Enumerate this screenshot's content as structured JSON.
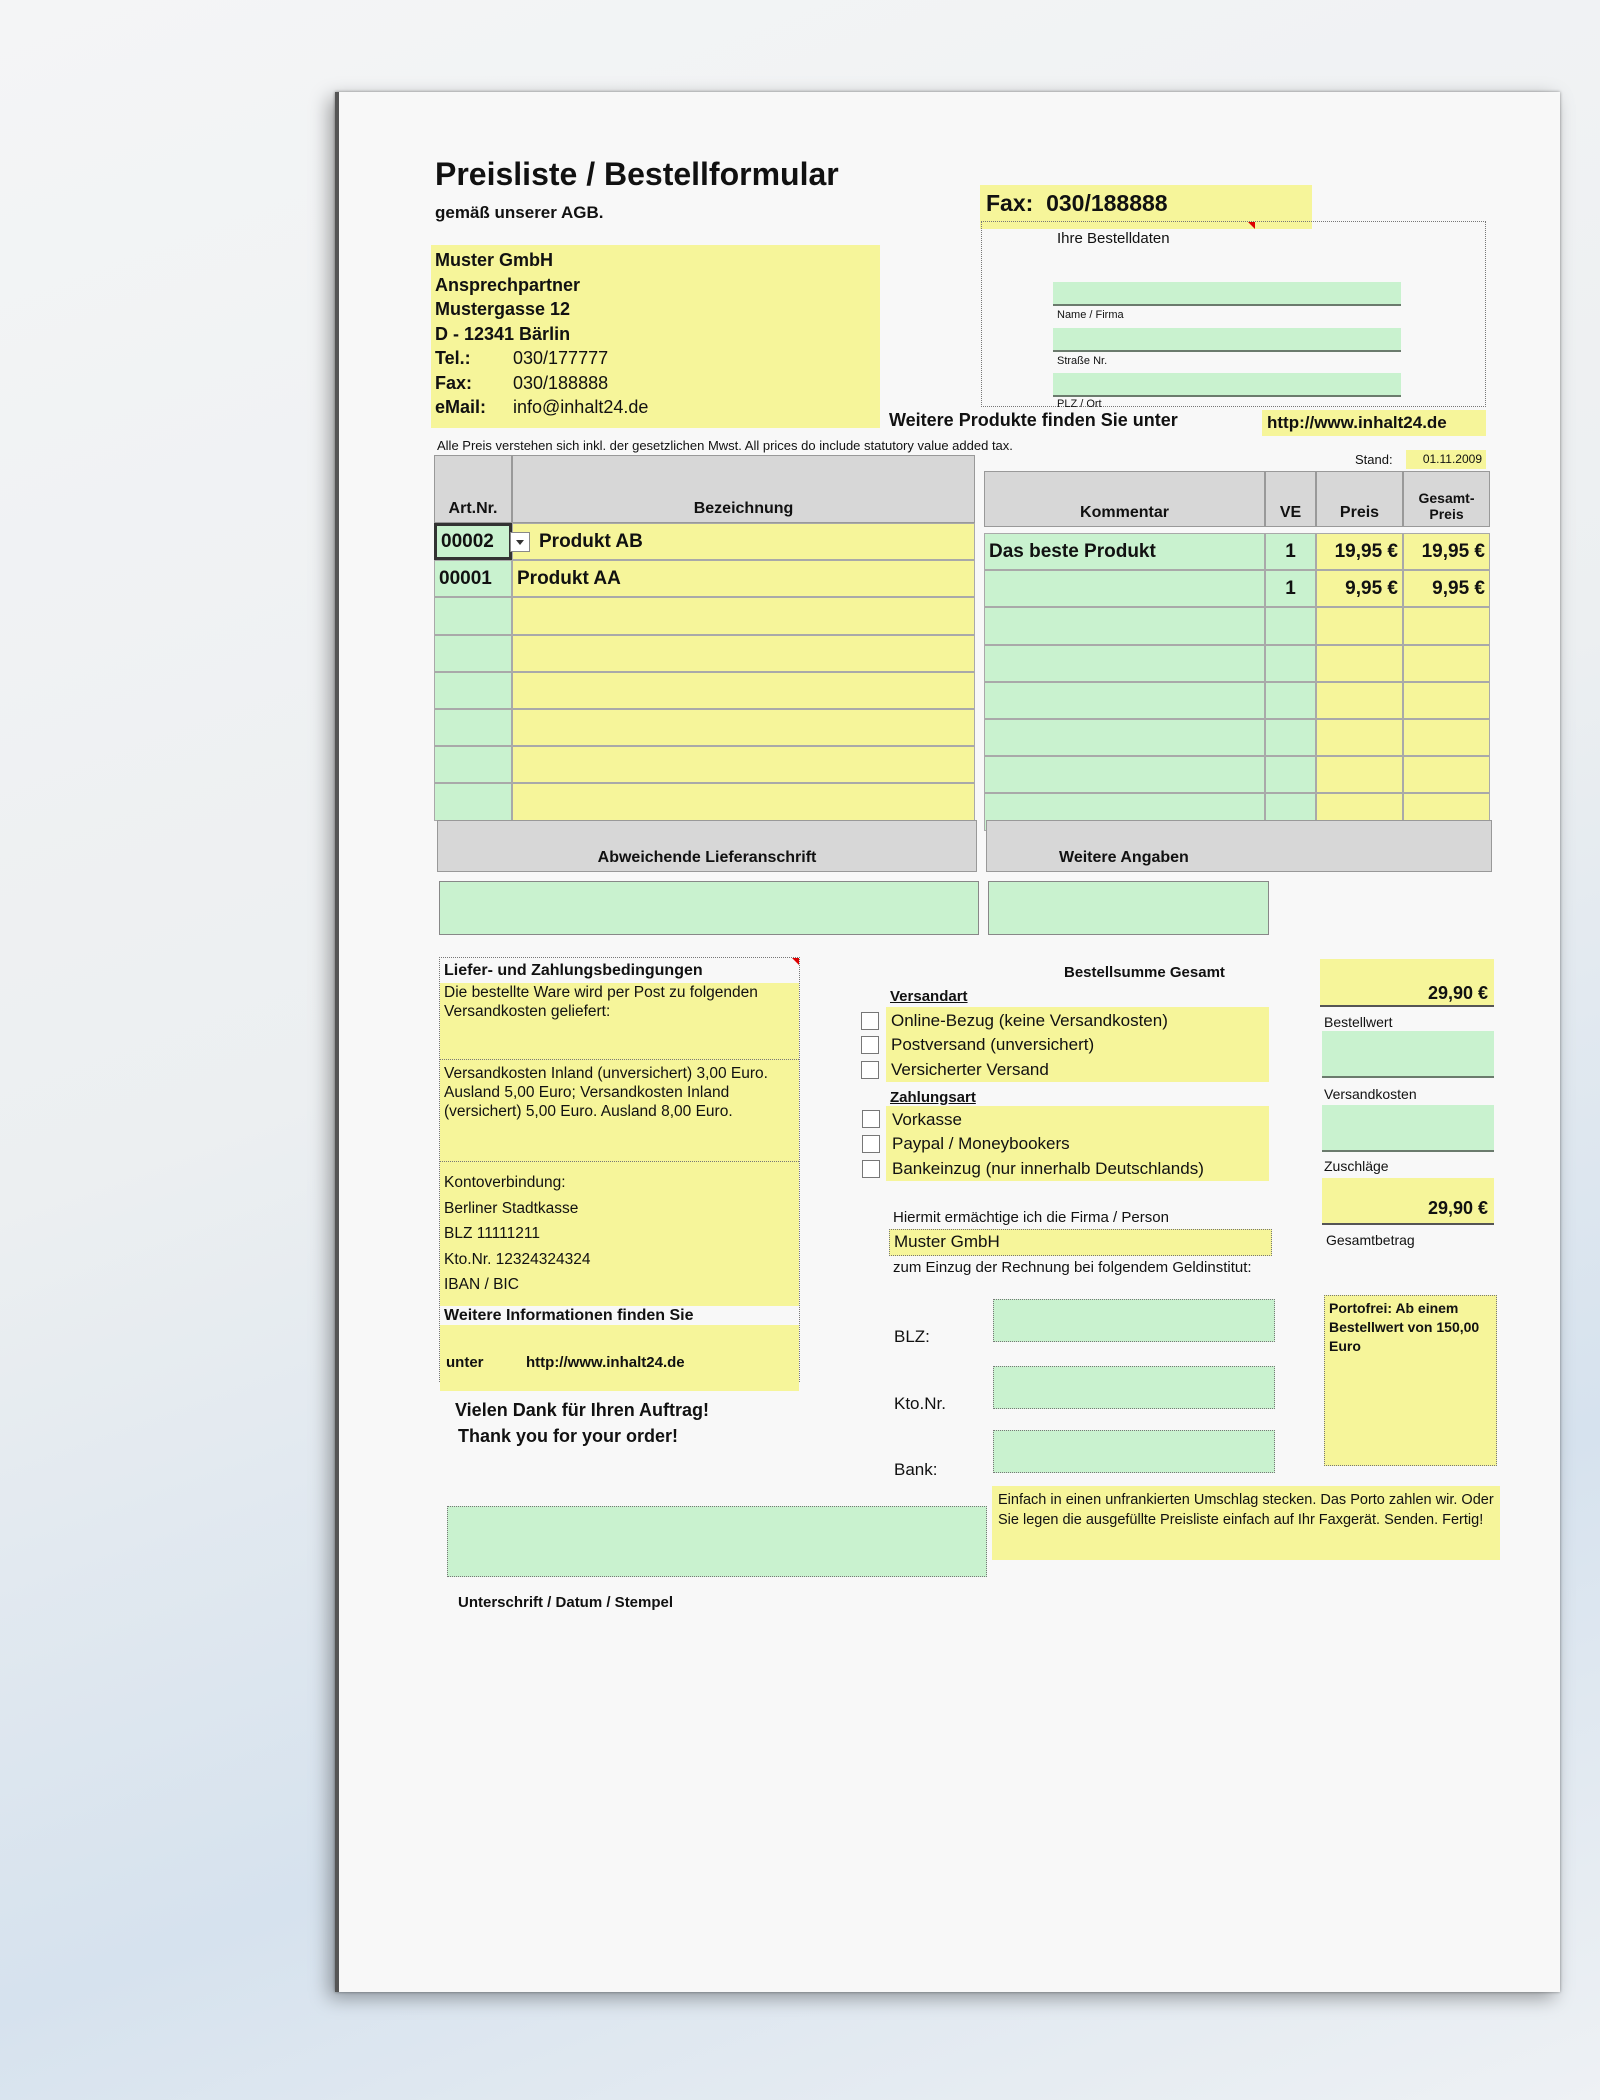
{
  "title": "Preisliste / Bestellformular",
  "subtitle": "gemäß unserer AGB.",
  "company": {
    "name": "Muster GmbH",
    "contact": "Ansprechpartner",
    "street": "Mustergasse 12",
    "city": "D - 12341 Bärlin",
    "tel_label": "Tel.:",
    "tel": "030/177777",
    "fax_label": "Fax:",
    "fax": "030/188888",
    "email_label": "eMail:",
    "email": "info@inhalt24.de"
  },
  "fax_header": {
    "label": "Fax:",
    "number": "030/188888"
  },
  "order_data": {
    "title": "Ihre Bestelldaten",
    "fields": [
      {
        "label": "Name / Firma",
        "value": ""
      },
      {
        "label": "Straße Nr.",
        "value": ""
      },
      {
        "label": "PLZ / Ort",
        "value": ""
      }
    ]
  },
  "more_products": {
    "text": "Weitere Produkte finden Sie unter",
    "url": "http://www.inhalt24.de"
  },
  "price_note": "Alle Preis verstehen sich inkl. der gesetzlichen Mwst.  All prices do include statutory value added tax.",
  "stand": {
    "label": "Stand:",
    "date": "01.11.2009"
  },
  "table": {
    "headers": {
      "art": "Art.Nr.",
      "bez": "Bezeichnung",
      "kom": "Kommentar",
      "ve": "VE",
      "preis": "Preis",
      "gesamt": "Gesamt-Preis"
    },
    "rows": [
      {
        "art": "00002",
        "bez": "Produkt AB",
        "kom": "Das beste Produkt",
        "ve": "1",
        "preis": "19,95 €",
        "gesamt": "19,95 €"
      },
      {
        "art": "00001",
        "bez": "Produkt AA",
        "kom": "",
        "ve": "1",
        "preis": "9,95 €",
        "gesamt": "9,95 €"
      },
      {
        "art": "",
        "bez": "",
        "kom": "",
        "ve": "",
        "preis": "",
        "gesamt": ""
      },
      {
        "art": "",
        "bez": "",
        "kom": "",
        "ve": "",
        "preis": "",
        "gesamt": ""
      },
      {
        "art": "",
        "bez": "",
        "kom": "",
        "ve": "",
        "preis": "",
        "gesamt": ""
      },
      {
        "art": "",
        "bez": "",
        "kom": "",
        "ve": "",
        "preis": "",
        "gesamt": ""
      },
      {
        "art": "",
        "bez": "",
        "kom": "",
        "ve": "",
        "preis": "",
        "gesamt": ""
      },
      {
        "art": "",
        "bez": "",
        "kom": "",
        "ve": "",
        "preis": "",
        "gesamt": ""
      }
    ],
    "alt_address": "Abweichende Lieferanschrift",
    "more_info": "Weitere Angaben"
  },
  "terms": {
    "title": "Liefer- und Zahlungsbedingungen",
    "intro": "Die bestellte Ware wird per Post zu folgenden Versandkosten geliefert:",
    "costs": "Versandkosten Inland (unversichert) 3,00 Euro. Ausland 5,00 Euro; Versandkosten Inland (versichert) 5,00 Euro. Ausland 8,00 Euro.",
    "account": [
      "Kontoverbindung:",
      "Berliner Stadtkasse",
      "BLZ 11111211",
      "Kto.Nr. 12324324324",
      "IBAN / BIC"
    ],
    "more_info": "Weitere Informationen finden Sie",
    "unter": "unter",
    "url": "http://www.inhalt24.de"
  },
  "thanks": [
    "Vielen Dank für Ihren Auftrag!",
    "Thank you for your order!"
  ],
  "shipping": {
    "title": "Versandart",
    "options": [
      "Online-Bezug (keine Versandkosten)",
      "Postversand (unversichert)",
      "Versicherter Versand"
    ]
  },
  "payment": {
    "title": "Zahlungsart",
    "options": [
      "Vorkasse",
      "Paypal / Moneybookers",
      "Bankeinzug (nur innerhalb Deutschlands)"
    ]
  },
  "summary": {
    "title": "Bestellsumme Gesamt",
    "total": "29,90 €",
    "bestellwert": "Bestellwert",
    "versandkosten": "Versandkosten",
    "zuschlaege": "Zuschläge",
    "gesamt_value": "29,90 €",
    "gesamtbetrag": "Gesamtbetrag"
  },
  "debit": {
    "text1": "Hiermit ermächtige ich die Firma / Person",
    "company": "Muster GmbH",
    "text2": "zum Einzug der Rechnung bei folgendem Geldinstitut:",
    "blz": "BLZ:",
    "kto": "Kto.Nr.",
    "bank": "Bank:"
  },
  "portofrei": "Portofrei: Ab einem Bestellwert von 150,00 Euro",
  "signature": "Unterschrift / Datum / Stempel",
  "envelope_note": "Einfach in einen unfrankierten Umschlag stecken. Das Porto zahlen wir. Oder Sie legen die ausgefüllte Preisliste einfach auf Ihr Faxgerät. Senden. Fertig!"
}
